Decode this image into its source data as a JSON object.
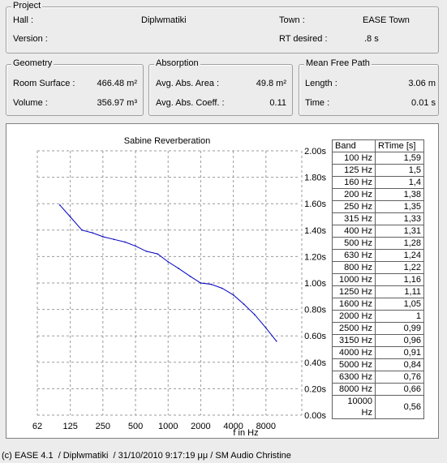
{
  "project": {
    "title": "Project",
    "hall_label": "Hall :",
    "hall_value": "Diplwmatiki",
    "town_label": "Town :",
    "town_value": "EASE Town",
    "version_label": "Version :",
    "version_value": "",
    "rt_label": "RT desired :",
    "rt_value": ".8 s"
  },
  "geometry": {
    "title": "Geometry",
    "surface_label": "Room Surface :",
    "surface_value": "466.48 m²",
    "volume_label": "Volume :",
    "volume_value": "356.97 m³"
  },
  "absorption": {
    "title": "Absorption",
    "area_label": "Avg. Abs. Area :",
    "area_value": "49.8 m²",
    "coeff_label": "Avg. Abs. Coeff. :",
    "coeff_value": "0.11"
  },
  "mfp": {
    "title": "Mean Free Path",
    "length_label": "Length :",
    "length_value": "3.06 m",
    "time_label": "Time :",
    "time_value": "0.01 s"
  },
  "table": {
    "col_band": "Band",
    "col_rt": "RTime [s]",
    "rows": [
      {
        "band": "100 Hz",
        "rt": "1,59"
      },
      {
        "band": "125 Hz",
        "rt": "1,5"
      },
      {
        "band": "160 Hz",
        "rt": "1,4"
      },
      {
        "band": "200 Hz",
        "rt": "1,38"
      },
      {
        "band": "250 Hz",
        "rt": "1,35"
      },
      {
        "band": "315 Hz",
        "rt": "1,33"
      },
      {
        "band": "400 Hz",
        "rt": "1,31"
      },
      {
        "band": "500 Hz",
        "rt": "1,28"
      },
      {
        "band": "630 Hz",
        "rt": "1,24"
      },
      {
        "band": "800 Hz",
        "rt": "1,22"
      },
      {
        "band": "1000 Hz",
        "rt": "1,16"
      },
      {
        "band": "1250 Hz",
        "rt": "1,11"
      },
      {
        "band": "1600 Hz",
        "rt": "1,05"
      },
      {
        "band": "2000 Hz",
        "rt": "1"
      },
      {
        "band": "2500 Hz",
        "rt": "0,99"
      },
      {
        "band": "3150 Hz",
        "rt": "0,96"
      },
      {
        "band": "4000 Hz",
        "rt": "0,91"
      },
      {
        "band": "5000 Hz",
        "rt": "0,84"
      },
      {
        "band": "6300 Hz",
        "rt": "0,76"
      },
      {
        "band": "8000 Hz",
        "rt": "0,66"
      },
      {
        "band": "10000 Hz",
        "rt": "0,56"
      }
    ]
  },
  "footer": "(c) EASE 4.1  / Diplwmatiki  / 31/10/2010 9:17:19 μμ / SM Audio Christine",
  "chart_data": {
    "type": "line",
    "title": "Sabine Reverberation",
    "xlabel": "f in Hz",
    "ylabel": "",
    "x_scale": "log",
    "x_ticks": [
      62,
      125,
      250,
      500,
      1000,
      2000,
      4000,
      8000
    ],
    "x_tick_labels": [
      "62",
      "125",
      "250",
      "500",
      "1000",
      "2000",
      "4000",
      "8000"
    ],
    "y_ticks": [
      0,
      0.2,
      0.4,
      0.6,
      0.8,
      1.0,
      1.2,
      1.4,
      1.6,
      1.8,
      2.0
    ],
    "y_tick_labels": [
      "0.00s",
      "0.20s",
      "0.40s",
      "0.60s",
      "0.80s",
      "1.00s",
      "1.20s",
      "1.40s",
      "1.60s",
      "1.80s",
      "2.00s"
    ],
    "ylim": [
      0,
      2.0
    ],
    "xlim": [
      62,
      16000
    ],
    "grid": true,
    "line_color": "#0000c0",
    "x": [
      100,
      125,
      160,
      200,
      250,
      315,
      400,
      500,
      630,
      800,
      1000,
      1250,
      1600,
      2000,
      2500,
      3150,
      4000,
      5000,
      6300,
      8000,
      10000
    ],
    "y": [
      1.59,
      1.5,
      1.4,
      1.38,
      1.35,
      1.33,
      1.31,
      1.28,
      1.24,
      1.22,
      1.16,
      1.11,
      1.05,
      1.0,
      0.99,
      0.96,
      0.91,
      0.84,
      0.76,
      0.66,
      0.56
    ]
  }
}
